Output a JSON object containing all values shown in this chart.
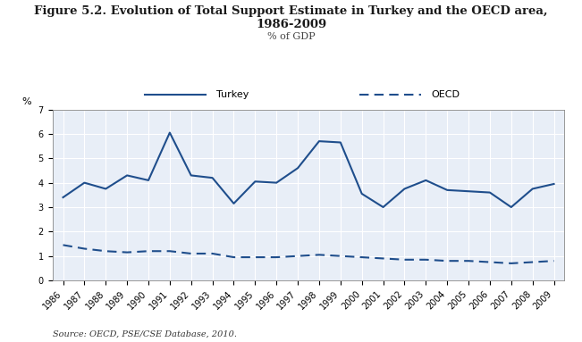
{
  "title_line1": "Figure 5.2. Evolution of Total Support Estimate in Turkey and the OECD area,",
  "title_line2": "1986-2009",
  "subtitle": "% of GDP",
  "ylabel": "%",
  "source": "Source: OECD, PSE/CSE Database, 2010.",
  "years": [
    1986,
    1987,
    1988,
    1989,
    1990,
    1991,
    1992,
    1993,
    1994,
    1995,
    1996,
    1997,
    1998,
    1999,
    2000,
    2001,
    2002,
    2003,
    2004,
    2005,
    2006,
    2007,
    2008,
    2009
  ],
  "turkey": [
    3.4,
    4.0,
    3.75,
    4.3,
    4.1,
    6.05,
    4.3,
    4.2,
    3.15,
    4.05,
    4.0,
    4.6,
    5.7,
    5.65,
    3.55,
    3.0,
    3.75,
    4.1,
    3.7,
    3.65,
    3.6,
    3.0,
    3.75,
    3.95
  ],
  "oecd": [
    1.45,
    1.3,
    1.2,
    1.15,
    1.2,
    1.2,
    1.1,
    1.1,
    0.95,
    0.95,
    0.95,
    1.0,
    1.05,
    1.0,
    0.95,
    0.9,
    0.85,
    0.85,
    0.8,
    0.8,
    0.75,
    0.7,
    0.75,
    0.8
  ],
  "line_color": "#1F4E8C",
  "plot_bg": "#E8EEF7",
  "legend_bg": "#D4D4D4",
  "fig_bg": "#FFFFFF",
  "grid_color": "#FFFFFF",
  "ylim": [
    0,
    7
  ],
  "yticks": [
    0,
    1,
    2,
    3,
    4,
    5,
    6,
    7
  ],
  "title_fontsize": 9.5,
  "subtitle_fontsize": 8,
  "tick_fontsize": 7,
  "ylabel_fontsize": 8,
  "legend_fontsize": 8,
  "source_fontsize": 7
}
